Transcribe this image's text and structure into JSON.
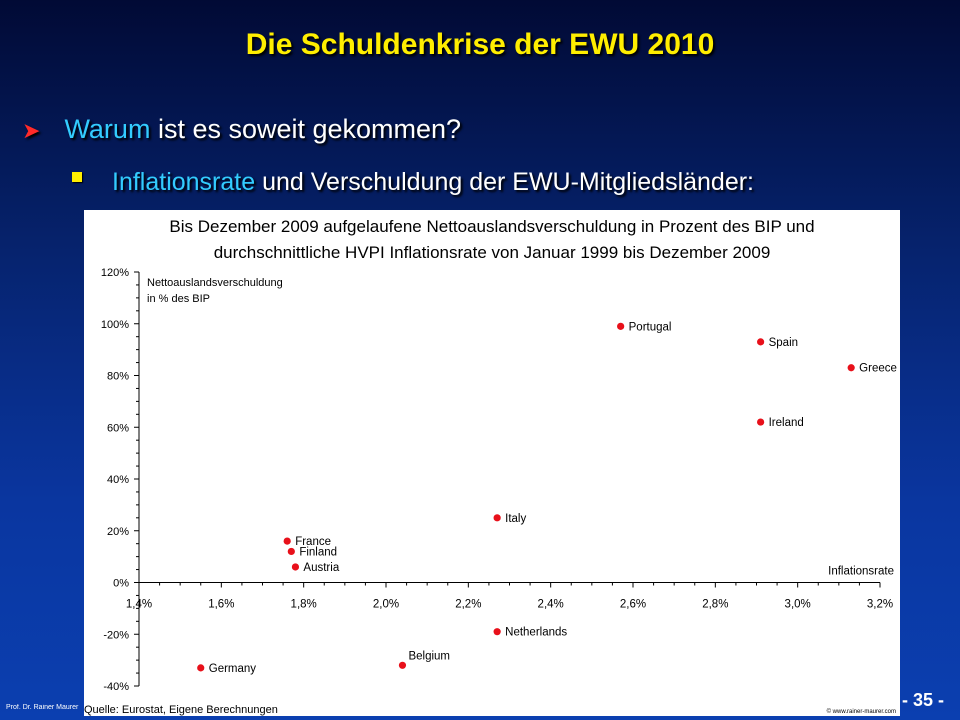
{
  "slide": {
    "title": "Die Schuldenkrise der EWU 2010",
    "bullet1": {
      "highlight": "Warum",
      "rest": " ist es soweit gekommen?"
    },
    "bullet2": {
      "highlight": "Inflationsrate",
      "rest": " und Verschuldung der EWU-Mitgliedsländer:"
    },
    "footer_author": "Prof. Dr. Rainer Maurer",
    "page_number": "- 35 -"
  },
  "chart_data": {
    "type": "scatter",
    "title": "Bis Dezember 2009 aufgelaufene Nettoauslandsverschuldung in Prozent des BIP und durchschnittliche HVPI Inflationsrate von Januar 1999 bis Dezember 2009",
    "title_lines": [
      "Bis Dezember 2009 aufgelaufene Nettoauslandsverschuldung in Prozent des BIP und",
      "durchschnittliche HVPI Inflationsrate von Januar 1999 bis Dezember 2009"
    ],
    "ylabel_lines": [
      "Nettoauslandsverschuldung",
      "in % des BIP"
    ],
    "xlabel": "Inflationsrate",
    "source": "Quelle: Eurostat, Eigene Berechnungen",
    "copyright": "© www.rainer-maurer.com",
    "xlim": [
      1.4,
      3.2
    ],
    "ylim": [
      -40,
      120
    ],
    "xticks": [
      1.4,
      1.6,
      1.8,
      2.0,
      2.2,
      2.4,
      2.6,
      2.8,
      3.0,
      3.2
    ],
    "xtick_labels": [
      "1,4%",
      "1,6%",
      "1,8%",
      "2,0%",
      "2,2%",
      "2,4%",
      "2,6%",
      "2,8%",
      "3,0%",
      "3,2%"
    ],
    "yticks": [
      120,
      100,
      80,
      60,
      40,
      20,
      0,
      -20,
      -40
    ],
    "ytick_labels": [
      "120%",
      "100%",
      "80%",
      "60%",
      "40%",
      "20%",
      "0%",
      "-20%",
      "-40%"
    ],
    "marker_color": "#e8101a",
    "points": [
      {
        "label": "Portugal",
        "x": 2.57,
        "y": 99,
        "label_side": "right"
      },
      {
        "label": "Spain",
        "x": 2.91,
        "y": 93,
        "label_side": "right"
      },
      {
        "label": "Greece",
        "x": 3.13,
        "y": 83,
        "label_side": "right"
      },
      {
        "label": "Ireland",
        "x": 2.91,
        "y": 62,
        "label_side": "right"
      },
      {
        "label": "Italy",
        "x": 2.27,
        "y": 25,
        "label_side": "right"
      },
      {
        "label": "France",
        "x": 1.76,
        "y": 16,
        "label_side": "right"
      },
      {
        "label": "Finland",
        "x": 1.77,
        "y": 12,
        "label_side": "right"
      },
      {
        "label": "Austria",
        "x": 1.78,
        "y": 6,
        "label_side": "right"
      },
      {
        "label": "Netherlands",
        "x": 2.27,
        "y": -19,
        "label_side": "right"
      },
      {
        "label": "Belgium",
        "x": 2.04,
        "y": -32,
        "label_side": "upper-right"
      },
      {
        "label": "Germany",
        "x": 1.55,
        "y": -33,
        "label_side": "right"
      }
    ]
  }
}
